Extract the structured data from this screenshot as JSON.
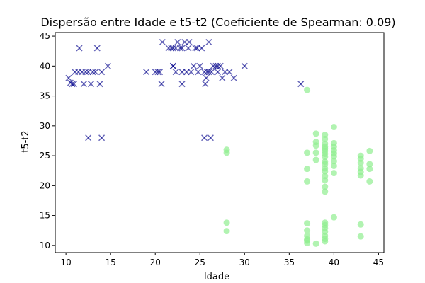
{
  "chart_data": {
    "type": "scatter",
    "title": "Dispersão entre Idade e t5-t2 (Coeficiente de Spearman: 0.09)",
    "xlabel": "Idade",
    "ylabel": "t5-t2",
    "xlim": [
      8.8,
      45.6
    ],
    "ylim": [
      8.8,
      45.6
    ],
    "xticks": [
      10,
      15,
      20,
      25,
      30,
      35,
      40,
      45
    ],
    "yticks": [
      10,
      15,
      20,
      25,
      30,
      35,
      40,
      45
    ],
    "grid": false,
    "series": [
      {
        "marker": "x",
        "color": "#00008b",
        "points": [
          [
            10.3,
            38
          ],
          [
            10.5,
            37.2
          ],
          [
            10.7,
            37
          ],
          [
            10.9,
            37
          ],
          [
            11,
            39
          ],
          [
            11.4,
            39
          ],
          [
            11.5,
            43
          ],
          [
            11.8,
            39
          ],
          [
            12,
            37
          ],
          [
            12.2,
            39
          ],
          [
            12.5,
            28
          ],
          [
            12.5,
            39
          ],
          [
            12.8,
            37
          ],
          [
            13,
            39
          ],
          [
            13.3,
            39
          ],
          [
            13.5,
            43
          ],
          [
            13.8,
            37
          ],
          [
            14,
            28
          ],
          [
            14,
            39
          ],
          [
            14.7,
            40
          ],
          [
            19,
            39
          ],
          [
            20,
            39
          ],
          [
            20.3,
            39
          ],
          [
            20.5,
            39
          ],
          [
            20.7,
            37
          ],
          [
            20.8,
            44
          ],
          [
            21.5,
            43
          ],
          [
            21.8,
            43
          ],
          [
            22,
            40
          ],
          [
            22,
            43
          ],
          [
            22,
            40
          ],
          [
            22.3,
            43
          ],
          [
            22.3,
            39
          ],
          [
            22.5,
            44
          ],
          [
            22.8,
            43
          ],
          [
            23,
            37
          ],
          [
            23,
            43
          ],
          [
            23,
            39
          ],
          [
            23.3,
            44
          ],
          [
            23.5,
            39
          ],
          [
            23.7,
            43
          ],
          [
            23.8,
            44
          ],
          [
            24,
            39
          ],
          [
            24.3,
            40
          ],
          [
            24.5,
            43
          ],
          [
            24.7,
            43
          ],
          [
            24.8,
            39
          ],
          [
            25,
            40
          ],
          [
            25.2,
            43
          ],
          [
            25.5,
            39
          ],
          [
            25.5,
            28
          ],
          [
            25.6,
            37
          ],
          [
            25.7,
            38
          ],
          [
            25.8,
            39
          ],
          [
            26,
            39
          ],
          [
            26,
            44
          ],
          [
            26.2,
            28
          ],
          [
            26.3,
            39
          ],
          [
            26.5,
            40
          ],
          [
            26.8,
            40
          ],
          [
            27,
            40
          ],
          [
            27,
            39
          ],
          [
            27.3,
            40
          ],
          [
            27.5,
            38
          ],
          [
            27.8,
            39
          ],
          [
            28.3,
            39
          ],
          [
            28.8,
            38
          ],
          [
            30,
            40
          ],
          [
            36.3,
            37
          ]
        ]
      },
      {
        "marker": "o",
        "color": "#90ee90",
        "points": [
          [
            28,
            26
          ],
          [
            28,
            25.5
          ],
          [
            28,
            13.8
          ],
          [
            28,
            12.4
          ],
          [
            37,
            36
          ],
          [
            37,
            25.5
          ],
          [
            37,
            22.8
          ],
          [
            37,
            20.7
          ],
          [
            37,
            13.7
          ],
          [
            37,
            12.5
          ],
          [
            37,
            11.6
          ],
          [
            37,
            11
          ],
          [
            37,
            10.8
          ],
          [
            37,
            10.4
          ],
          [
            38,
            28.7
          ],
          [
            38,
            27.3
          ],
          [
            38,
            26.7
          ],
          [
            38,
            25.5
          ],
          [
            38,
            24.3
          ],
          [
            38,
            10.3
          ],
          [
            39,
            28.5
          ],
          [
            39,
            27.8
          ],
          [
            39,
            27
          ],
          [
            39,
            26.5
          ],
          [
            39,
            26.2
          ],
          [
            39,
            25.8
          ],
          [
            39,
            25.3
          ],
          [
            39,
            24.8
          ],
          [
            39,
            24
          ],
          [
            39,
            23.6
          ],
          [
            39,
            22.9
          ],
          [
            39,
            22.4
          ],
          [
            39,
            21.6
          ],
          [
            39,
            20.9
          ],
          [
            39,
            19.8
          ],
          [
            39,
            19
          ],
          [
            39,
            13.8
          ],
          [
            39,
            13.4
          ],
          [
            39,
            12.9
          ],
          [
            39,
            12.3
          ],
          [
            39,
            11.6
          ],
          [
            39,
            11.1
          ],
          [
            39,
            10.7
          ],
          [
            40,
            29.8
          ],
          [
            40,
            27.1
          ],
          [
            40,
            26.5
          ],
          [
            40,
            25.9
          ],
          [
            40,
            25.4
          ],
          [
            40,
            24.9
          ],
          [
            40,
            24.1
          ],
          [
            40,
            23.3
          ],
          [
            40,
            22.1
          ],
          [
            40,
            14.7
          ],
          [
            43,
            25
          ],
          [
            43,
            24.5
          ],
          [
            43,
            23.8
          ],
          [
            43,
            22.9
          ],
          [
            43,
            22.3
          ],
          [
            43,
            21.7
          ],
          [
            43,
            13.5
          ],
          [
            43,
            11.5
          ],
          [
            44,
            25.8
          ],
          [
            44,
            23.6
          ],
          [
            44,
            22.8
          ],
          [
            44,
            20.7
          ]
        ]
      }
    ]
  }
}
